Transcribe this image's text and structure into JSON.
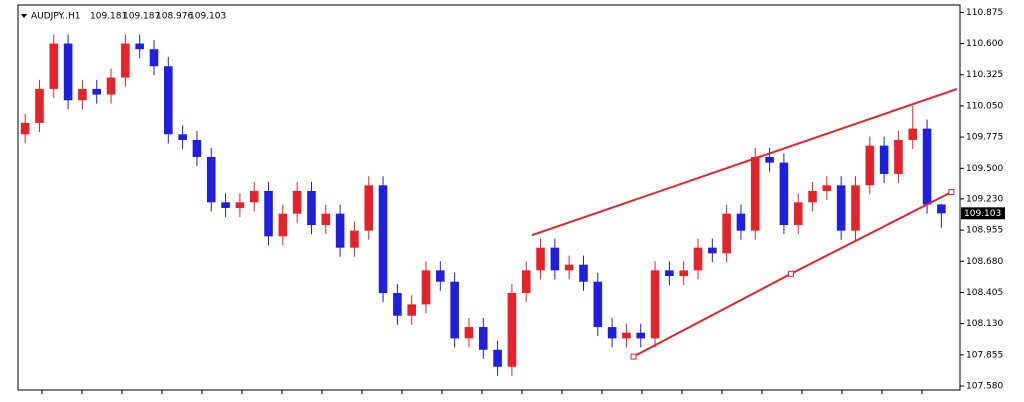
{
  "chart_data": {
    "type": "candlestick",
    "symbol": "AUDJPY..H1",
    "up_color": "#e5232b",
    "down_color": "#1f1fe0",
    "line_color": "#e5232b",
    "xlim": [
      -0.5,
      65.3
    ],
    "ylim": [
      107.545,
      110.94
    ],
    "yticks": [
      110.875,
      {
        "value": 110.6,
        "label": "110.600"
      },
      110.325,
      {
        "value": 110.05,
        "label": "110.050"
      },
      109.775,
      {
        "value": 109.5,
        "label": "109.500"
      },
      {
        "value": 109.23,
        "label": "109.230"
      },
      108.955,
      {
        "value": 108.68,
        "label": "108.680"
      },
      108.405,
      {
        "value": 108.13,
        "label": "108.130"
      },
      107.855,
      {
        "value": 107.58,
        "label": "107.580"
      }
    ],
    "open": [
      109.8,
      109.9,
      110.2,
      110.6,
      110.1,
      110.2,
      110.15,
      110.3,
      110.6,
      110.55,
      110.4,
      109.8,
      109.75,
      109.6,
      109.2,
      109.15,
      109.2,
      109.3,
      108.9,
      109.1,
      109.3,
      109.0,
      109.1,
      108.8,
      108.95,
      109.35,
      108.4,
      108.2,
      108.3,
      108.6,
      108.5,
      108.0,
      108.1,
      107.9,
      107.75,
      108.4,
      108.6,
      108.8,
      108.6,
      108.65,
      108.5,
      108.1,
      108.0,
      108.05,
      108.0,
      108.6,
      108.55,
      108.6,
      108.8,
      108.75,
      109.1,
      108.95,
      109.6,
      109.55,
      109.0,
      109.2,
      109.3,
      109.35,
      108.95,
      109.35,
      109.7,
      109.45,
      109.75,
      109.85,
      109.181
    ],
    "high": [
      109.98,
      110.28,
      110.68,
      110.68,
      110.28,
      110.28,
      110.38,
      110.68,
      110.68,
      110.63,
      110.48,
      109.88,
      109.83,
      109.68,
      109.28,
      109.28,
      109.38,
      109.38,
      109.18,
      109.38,
      109.38,
      109.18,
      109.18,
      109.03,
      109.43,
      109.43,
      108.48,
      108.38,
      108.68,
      108.68,
      108.58,
      108.18,
      108.18,
      107.98,
      108.48,
      108.68,
      108.88,
      108.88,
      108.73,
      108.73,
      108.58,
      108.18,
      108.13,
      108.13,
      108.68,
      108.68,
      108.68,
      108.88,
      108.88,
      109.18,
      109.18,
      109.68,
      109.68,
      109.63,
      109.28,
      109.38,
      109.43,
      109.43,
      109.43,
      109.78,
      109.78,
      109.83,
      110.05,
      109.93,
      109.187
    ],
    "low": [
      109.72,
      109.82,
      110.12,
      110.02,
      110.02,
      110.07,
      110.07,
      110.22,
      110.47,
      110.32,
      109.72,
      109.67,
      109.52,
      109.12,
      109.07,
      109.07,
      109.12,
      108.82,
      108.82,
      109.02,
      108.92,
      108.92,
      108.72,
      108.72,
      108.87,
      108.32,
      108.12,
      108.12,
      108.22,
      108.42,
      107.92,
      107.92,
      107.82,
      107.67,
      107.67,
      108.32,
      108.52,
      108.52,
      108.52,
      108.42,
      108.02,
      107.92,
      107.92,
      107.92,
      107.92,
      108.47,
      108.47,
      108.52,
      108.67,
      108.67,
      108.87,
      108.87,
      109.47,
      108.92,
      108.92,
      109.12,
      109.22,
      108.87,
      108.87,
      109.27,
      109.37,
      109.37,
      109.67,
      109.1,
      108.976
    ],
    "close": [
      109.9,
      110.2,
      110.6,
      110.1,
      110.2,
      110.15,
      110.3,
      110.6,
      110.55,
      110.4,
      109.8,
      109.75,
      109.6,
      109.2,
      109.15,
      109.2,
      109.3,
      108.9,
      109.1,
      109.3,
      109.0,
      109.1,
      108.8,
      108.95,
      109.35,
      108.4,
      108.2,
      108.3,
      108.6,
      108.5,
      108.0,
      108.1,
      107.9,
      107.75,
      108.4,
      108.6,
      108.8,
      108.6,
      108.65,
      108.5,
      108.1,
      108.0,
      108.05,
      108.0,
      108.6,
      108.55,
      108.6,
      108.8,
      108.75,
      109.1,
      108.95,
      109.6,
      109.55,
      109.0,
      109.2,
      109.3,
      109.35,
      108.95,
      109.35,
      109.7,
      109.45,
      109.75,
      109.85,
      109.18,
      109.103
    ],
    "trendlines": [
      {
        "x": [
          35.4,
          65.1
        ],
        "y": [
          108.91,
          110.2
        ]
      },
      {
        "x": [
          42.5,
          53.5,
          64.7
        ],
        "y": [
          107.84,
          108.57,
          109.29
        ]
      }
    ]
  }
}
